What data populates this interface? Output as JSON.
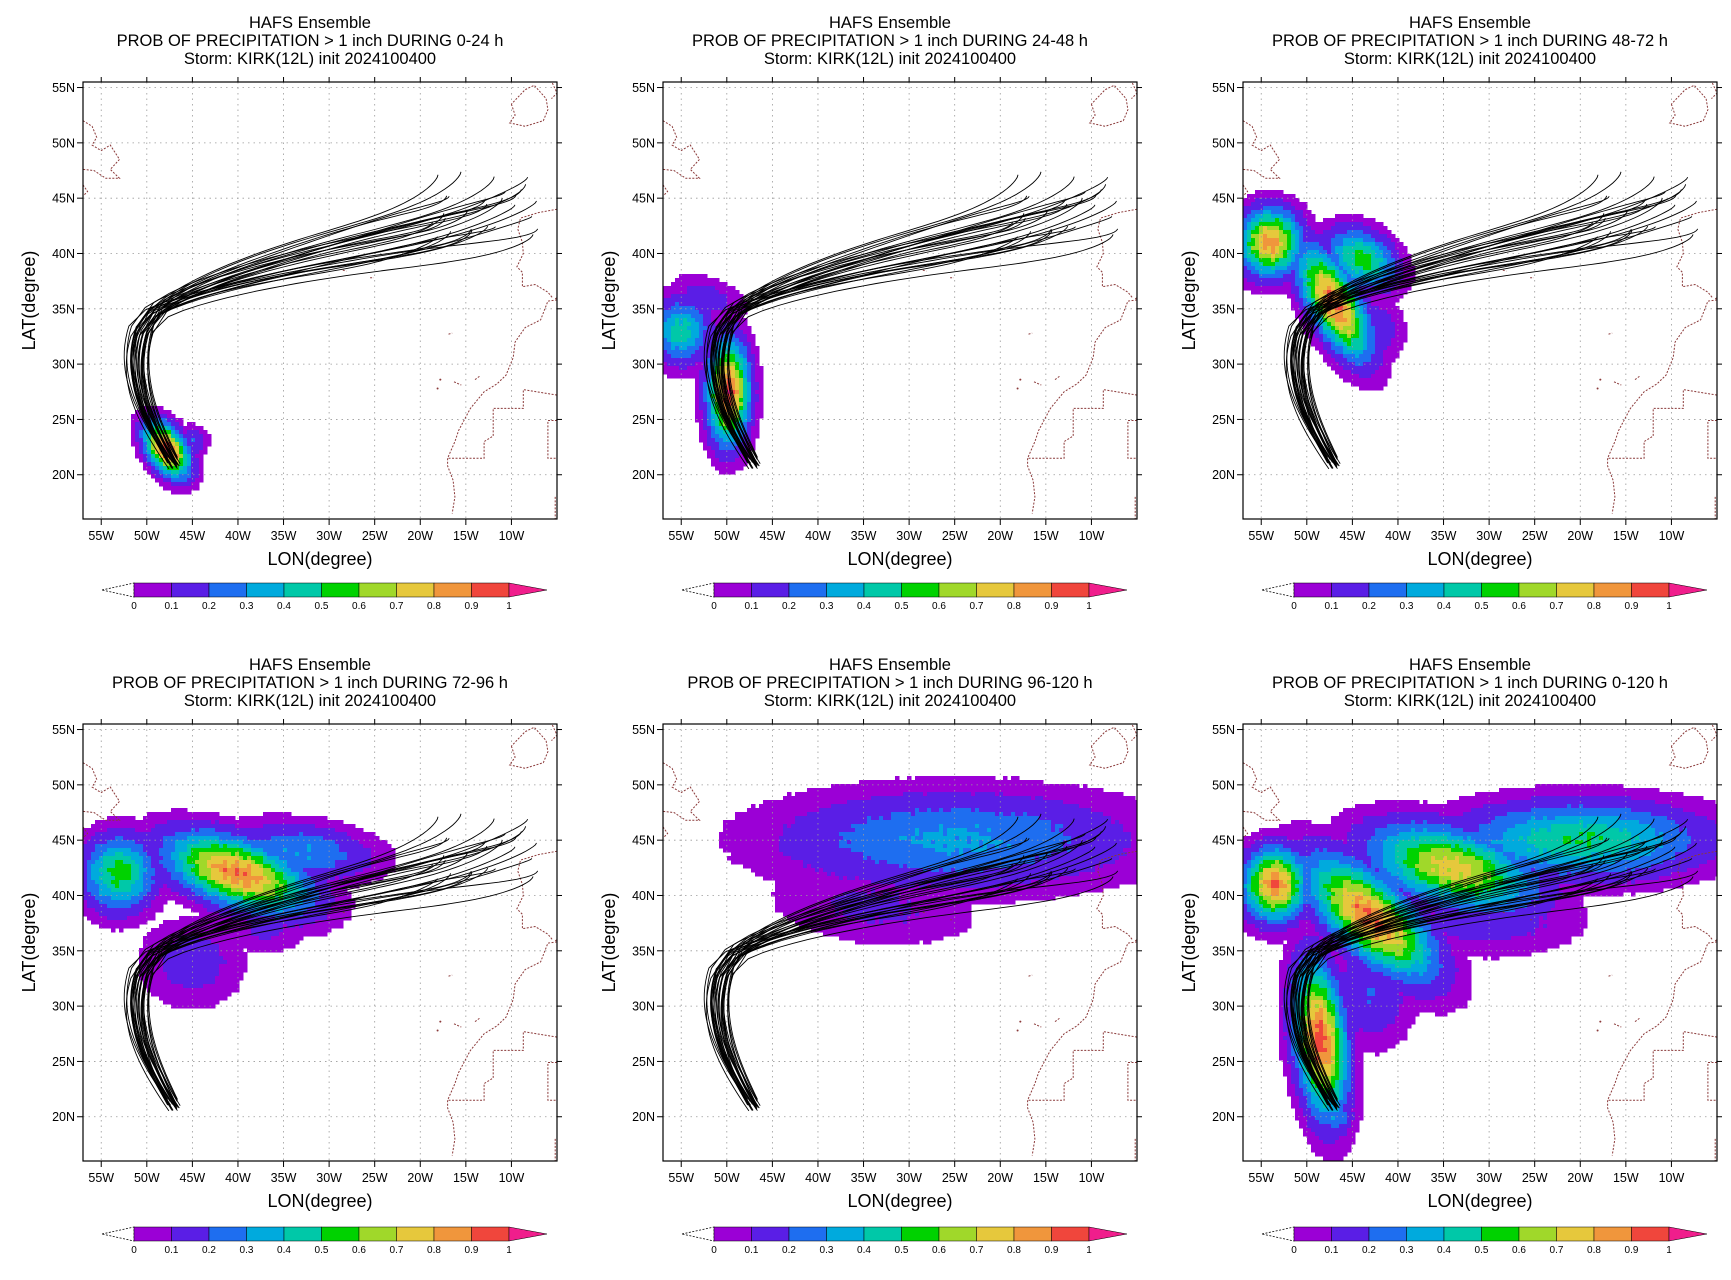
{
  "page": {
    "common_title": "HAFS Ensemble",
    "storm_line": "Storm: KIRK(12L) init 2024100400",
    "xlabel": "LON(degree)",
    "ylabel": "LAT(degree)",
    "x_ticks": [
      "55W",
      "50W",
      "45W",
      "40W",
      "35W",
      "30W",
      "25W",
      "20W",
      "15W",
      "10W"
    ],
    "y_ticks": [
      "20N",
      "25N",
      "30N",
      "35N",
      "40N",
      "45N",
      "50N",
      "55N"
    ],
    "colorbar": {
      "labels": [
        "0",
        "0.1",
        "0.2",
        "0.3",
        "0.4",
        "0.5",
        "0.6",
        "0.7",
        "0.8",
        "0.9",
        "1"
      ],
      "colors": [
        "#9b00d6",
        "#5a1ee6",
        "#1e6ef0",
        "#00aadd",
        "#00c8a8",
        "#00d200",
        "#a0d82a",
        "#e6c83c",
        "#f0963c",
        "#f0463c",
        "#f01e8c"
      ]
    }
  },
  "chart_data": [
    {
      "type": "heatmap",
      "subtitle": "PROB OF PRECIPITATION > 1 inch DURING  0-24 h",
      "xlim": [
        -57,
        -5
      ],
      "ylim": [
        16,
        55.5
      ],
      "blobs": [
        {
          "lon": -47.8,
          "lat": 22.3,
          "rx": 2.6,
          "ry": 1.6,
          "rot": -45,
          "peak": 0.98
        },
        {
          "lon": -45,
          "lat": 23,
          "rx": 1.5,
          "ry": 1.2,
          "rot": 0,
          "peak": 0.2
        }
      ]
    },
    {
      "type": "heatmap",
      "subtitle": "PROB OF PRECIPITATION > 1 inch DURING 24-48 h",
      "xlim": [
        -57,
        -5
      ],
      "ylim": [
        16,
        55.5
      ],
      "blobs": [
        {
          "lon": -49.8,
          "lat": 27.5,
          "rx": 2.0,
          "ry": 4.0,
          "rot": 0,
          "peak": 0.95
        },
        {
          "lon": -55,
          "lat": 33,
          "rx": 2.8,
          "ry": 2.6,
          "rot": 0,
          "peak": 0.45
        },
        {
          "lon": -52,
          "lat": 36,
          "rx": 3.5,
          "ry": 1.6,
          "rot": -15,
          "peak": 0.15
        }
      ]
    },
    {
      "type": "heatmap",
      "subtitle": "PROB OF PRECIPITATION > 1 inch DURING 48-72 h",
      "xlim": [
        -57,
        -5
      ],
      "ylim": [
        16,
        55.5
      ],
      "blobs": [
        {
          "lon": -54,
          "lat": 41,
          "rx": 3.0,
          "ry": 2.6,
          "rot": 0,
          "peak": 0.85
        },
        {
          "lon": -47,
          "lat": 35.5,
          "rx": 5,
          "ry": 2.2,
          "rot": -55,
          "peak": 0.92
        },
        {
          "lon": -44,
          "lat": 39.5,
          "rx": 3.5,
          "ry": 2.2,
          "rot": -20,
          "peak": 0.55
        },
        {
          "lon": -43,
          "lat": 33,
          "rx": 3,
          "ry": 2.5,
          "rot": 0,
          "peak": 0.2
        }
      ]
    },
    {
      "type": "heatmap",
      "subtitle": "PROB OF PRECIPITATION > 1 inch DURING 72-96 h",
      "xlim": [
        -57,
        -5
      ],
      "ylim": [
        16,
        55.5
      ],
      "blobs": [
        {
          "lon": -40,
          "lat": 42,
          "rx": 7,
          "ry": 2.6,
          "rot": -15,
          "peak": 0.88
        },
        {
          "lon": -53,
          "lat": 42,
          "rx": 3.5,
          "ry": 3,
          "rot": 0,
          "peak": 0.55
        },
        {
          "lon": -33,
          "lat": 44,
          "rx": 7,
          "ry": 2.2,
          "rot": -5,
          "peak": 0.3
        },
        {
          "lon": -45,
          "lat": 34,
          "rx": 5,
          "ry": 3.5,
          "rot": 0,
          "peak": 0.15
        },
        {
          "lon": -37,
          "lat": 37,
          "rx": 4,
          "ry": 2,
          "rot": 0,
          "peak": 0.12
        }
      ]
    },
    {
      "type": "heatmap",
      "subtitle": "PROB OF PRECIPITATION > 1 inch DURING 96-120 h",
      "xlim": [
        -57,
        -5
      ],
      "ylim": [
        16,
        55.5
      ],
      "blobs": [
        {
          "lon": -25,
          "lat": 45,
          "rx": 17,
          "ry": 3.8,
          "rot": 0,
          "peak": 0.32
        },
        {
          "lon": -34,
          "lat": 39,
          "rx": 10,
          "ry": 3,
          "rot": -5,
          "peak": 0.12
        },
        {
          "lon": -20,
          "lat": 47.5,
          "rx": 10,
          "ry": 2,
          "rot": 0,
          "peak": 0.12
        }
      ]
    },
    {
      "type": "heatmap",
      "subtitle": "PROB OF PRECIPITATION > 1 inch DURING 0-120 h",
      "xlim": [
        -57,
        -5
      ],
      "ylim": [
        16,
        55.5
      ],
      "blobs": [
        {
          "lon": -48.5,
          "lat": 27,
          "rx": 2.4,
          "ry": 6,
          "rot": 8,
          "peak": 0.95
        },
        {
          "lon": -43,
          "lat": 38,
          "rx": 7,
          "ry": 3,
          "rot": -35,
          "peak": 0.9
        },
        {
          "lon": -34,
          "lat": 42.5,
          "rx": 8,
          "ry": 3,
          "rot": -12,
          "peak": 0.75
        },
        {
          "lon": -20,
          "lat": 45,
          "rx": 12,
          "ry": 3,
          "rot": 0,
          "peak": 0.5
        },
        {
          "lon": -53.5,
          "lat": 41,
          "rx": 3,
          "ry": 2.8,
          "rot": 0,
          "peak": 0.9
        },
        {
          "lon": -43,
          "lat": 31,
          "rx": 4,
          "ry": 4,
          "rot": 0,
          "peak": 0.2
        },
        {
          "lon": -30,
          "lat": 38,
          "rx": 9,
          "ry": 3,
          "rot": 0,
          "peak": 0.15
        },
        {
          "lon": -47,
          "lat": 20,
          "rx": 2,
          "ry": 1.5,
          "rot": 0,
          "peak": 0.3
        }
      ]
    }
  ]
}
